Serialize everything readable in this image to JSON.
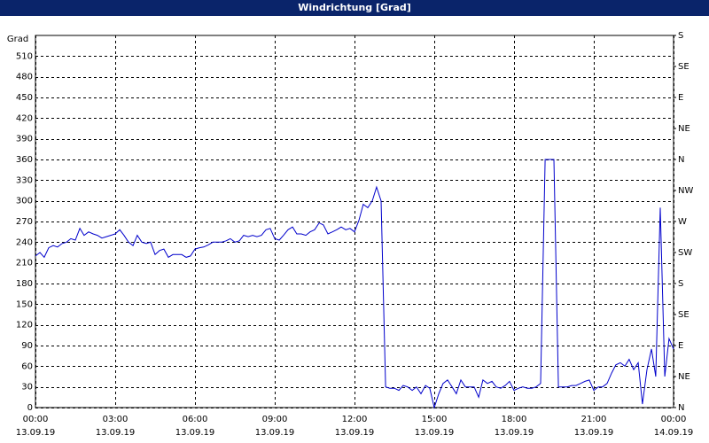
{
  "chart_data": {
    "type": "line",
    "title": "Windrichtung [Grad]",
    "y_label": "Grad",
    "x": [
      0,
      0.17,
      0.33,
      0.5,
      0.67,
      0.83,
      1.0,
      1.17,
      1.33,
      1.5,
      1.67,
      1.83,
      2.0,
      2.17,
      2.33,
      2.5,
      2.67,
      2.83,
      3.0,
      3.17,
      3.33,
      3.5,
      3.67,
      3.83,
      4.0,
      4.17,
      4.33,
      4.5,
      4.67,
      4.83,
      5.0,
      5.17,
      5.33,
      5.5,
      5.67,
      5.83,
      6.0,
      6.17,
      6.33,
      6.5,
      6.67,
      6.83,
      7.0,
      7.17,
      7.33,
      7.5,
      7.67,
      7.83,
      8.0,
      8.17,
      8.33,
      8.5,
      8.67,
      8.83,
      9.0,
      9.17,
      9.33,
      9.5,
      9.67,
      9.83,
      10.0,
      10.17,
      10.33,
      10.5,
      10.67,
      10.83,
      11.0,
      11.17,
      11.33,
      11.5,
      11.67,
      11.83,
      12.0,
      12.17,
      12.33,
      12.5,
      12.67,
      12.83,
      13.0,
      13.17,
      13.33,
      13.5,
      13.67,
      13.83,
      14.0,
      14.17,
      14.33,
      14.5,
      14.67,
      14.83,
      15.0,
      15.17,
      15.33,
      15.5,
      15.67,
      15.83,
      16.0,
      16.17,
      16.33,
      16.5,
      16.67,
      16.83,
      17.0,
      17.17,
      17.33,
      17.5,
      17.67,
      17.83,
      18.0,
      18.17,
      18.33,
      18.5,
      18.67,
      18.83,
      19.0,
      19.17,
      19.33,
      19.5,
      19.67,
      19.83,
      20.0,
      20.17,
      20.33,
      20.5,
      20.67,
      20.83,
      21.0,
      21.17,
      21.33,
      21.5,
      21.67,
      21.83,
      22.0,
      22.17,
      22.33,
      22.5,
      22.67,
      22.83,
      23.0,
      23.17,
      23.33,
      23.5,
      23.67,
      23.83,
      24.0
    ],
    "series": [
      {
        "name": "Windrichtung",
        "color": "#0000cc",
        "values": [
          220,
          225,
          218,
          232,
          235,
          233,
          238,
          240,
          245,
          243,
          260,
          250,
          255,
          252,
          250,
          246,
          248,
          250,
          252,
          258,
          250,
          240,
          235,
          250,
          240,
          238,
          240,
          222,
          228,
          230,
          218,
          222,
          222,
          222,
          218,
          220,
          230,
          232,
          233,
          236,
          240,
          240,
          240,
          242,
          245,
          240,
          242,
          250,
          248,
          250,
          248,
          250,
          258,
          260,
          245,
          243,
          250,
          258,
          262,
          252,
          252,
          250,
          255,
          258,
          268,
          265,
          252,
          255,
          258,
          262,
          258,
          260,
          255,
          272,
          295,
          290,
          300,
          320,
          300,
          30,
          28,
          28,
          25,
          32,
          30,
          25,
          30,
          20,
          32,
          28,
          0,
          20,
          35,
          40,
          30,
          20,
          40,
          30,
          30,
          30,
          15,
          40,
          35,
          38,
          30,
          28,
          32,
          38,
          25,
          28,
          30,
          28,
          28,
          30,
          35,
          360,
          360,
          360,
          30,
          30,
          30,
          32,
          32,
          35,
          38,
          40,
          25,
          30,
          30,
          35,
          50,
          62,
          65,
          60,
          70,
          55,
          65,
          5,
          55,
          85,
          45,
          290,
          45,
          100,
          85
        ]
      }
    ],
    "xlim": [
      0,
      24
    ],
    "ylim": [
      0,
      540
    ],
    "y2lim": [
      0,
      540
    ],
    "xticks": [
      {
        "value": 0,
        "label": "00:00"
      },
      {
        "value": 3,
        "label": "03:00"
      },
      {
        "value": 6,
        "label": "06:00"
      },
      {
        "value": 9,
        "label": "09:00"
      },
      {
        "value": 12,
        "label": "12:00"
      },
      {
        "value": 15,
        "label": "15:00"
      },
      {
        "value": 18,
        "label": "18:00"
      },
      {
        "value": 21,
        "label": "21:00"
      },
      {
        "value": 24,
        "label": "00:00"
      }
    ],
    "xtick_dates": [
      "13.09.19",
      "13.09.19",
      "13.09.19",
      "13.09.19",
      "13.09.19",
      "13.09.19",
      "13.09.19",
      "13.09.19",
      "14.09.19"
    ],
    "yticks": [
      0,
      30,
      60,
      90,
      120,
      150,
      180,
      210,
      240,
      270,
      300,
      330,
      360,
      390,
      420,
      450,
      480,
      510
    ],
    "y2ticks": [
      {
        "value": 0,
        "label": "N"
      },
      {
        "value": 45,
        "label": "NE"
      },
      {
        "value": 90,
        "label": "E"
      },
      {
        "value": 135,
        "label": "SE"
      },
      {
        "value": 180,
        "label": "S"
      },
      {
        "value": 225,
        "label": "SW"
      },
      {
        "value": 270,
        "label": "W"
      },
      {
        "value": 315,
        "label": "NW"
      },
      {
        "value": 360,
        "label": "N"
      },
      {
        "value": 405,
        "label": "NE"
      },
      {
        "value": 450,
        "label": "E"
      },
      {
        "value": 495,
        "label": "SE"
      },
      {
        "value": 540,
        "label": "S"
      }
    ],
    "grid": true
  }
}
